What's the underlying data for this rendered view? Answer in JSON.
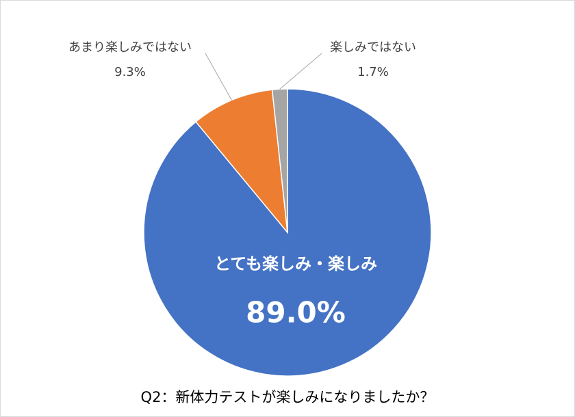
{
  "chart_data": {
    "type": "pie",
    "title": "Q2：新体力テストが楽しみになりましたか？",
    "categories": [
      "とても楽しみ・楽しみ",
      "あまり楽しみではない",
      "楽しみではない"
    ],
    "values": [
      89.0,
      9.3,
      1.7
    ],
    "value_labels": [
      "89.0%",
      "9.3%",
      "1.7%"
    ],
    "colors": [
      "#4472c4",
      "#ed7d31",
      "#a5a5a5"
    ]
  }
}
